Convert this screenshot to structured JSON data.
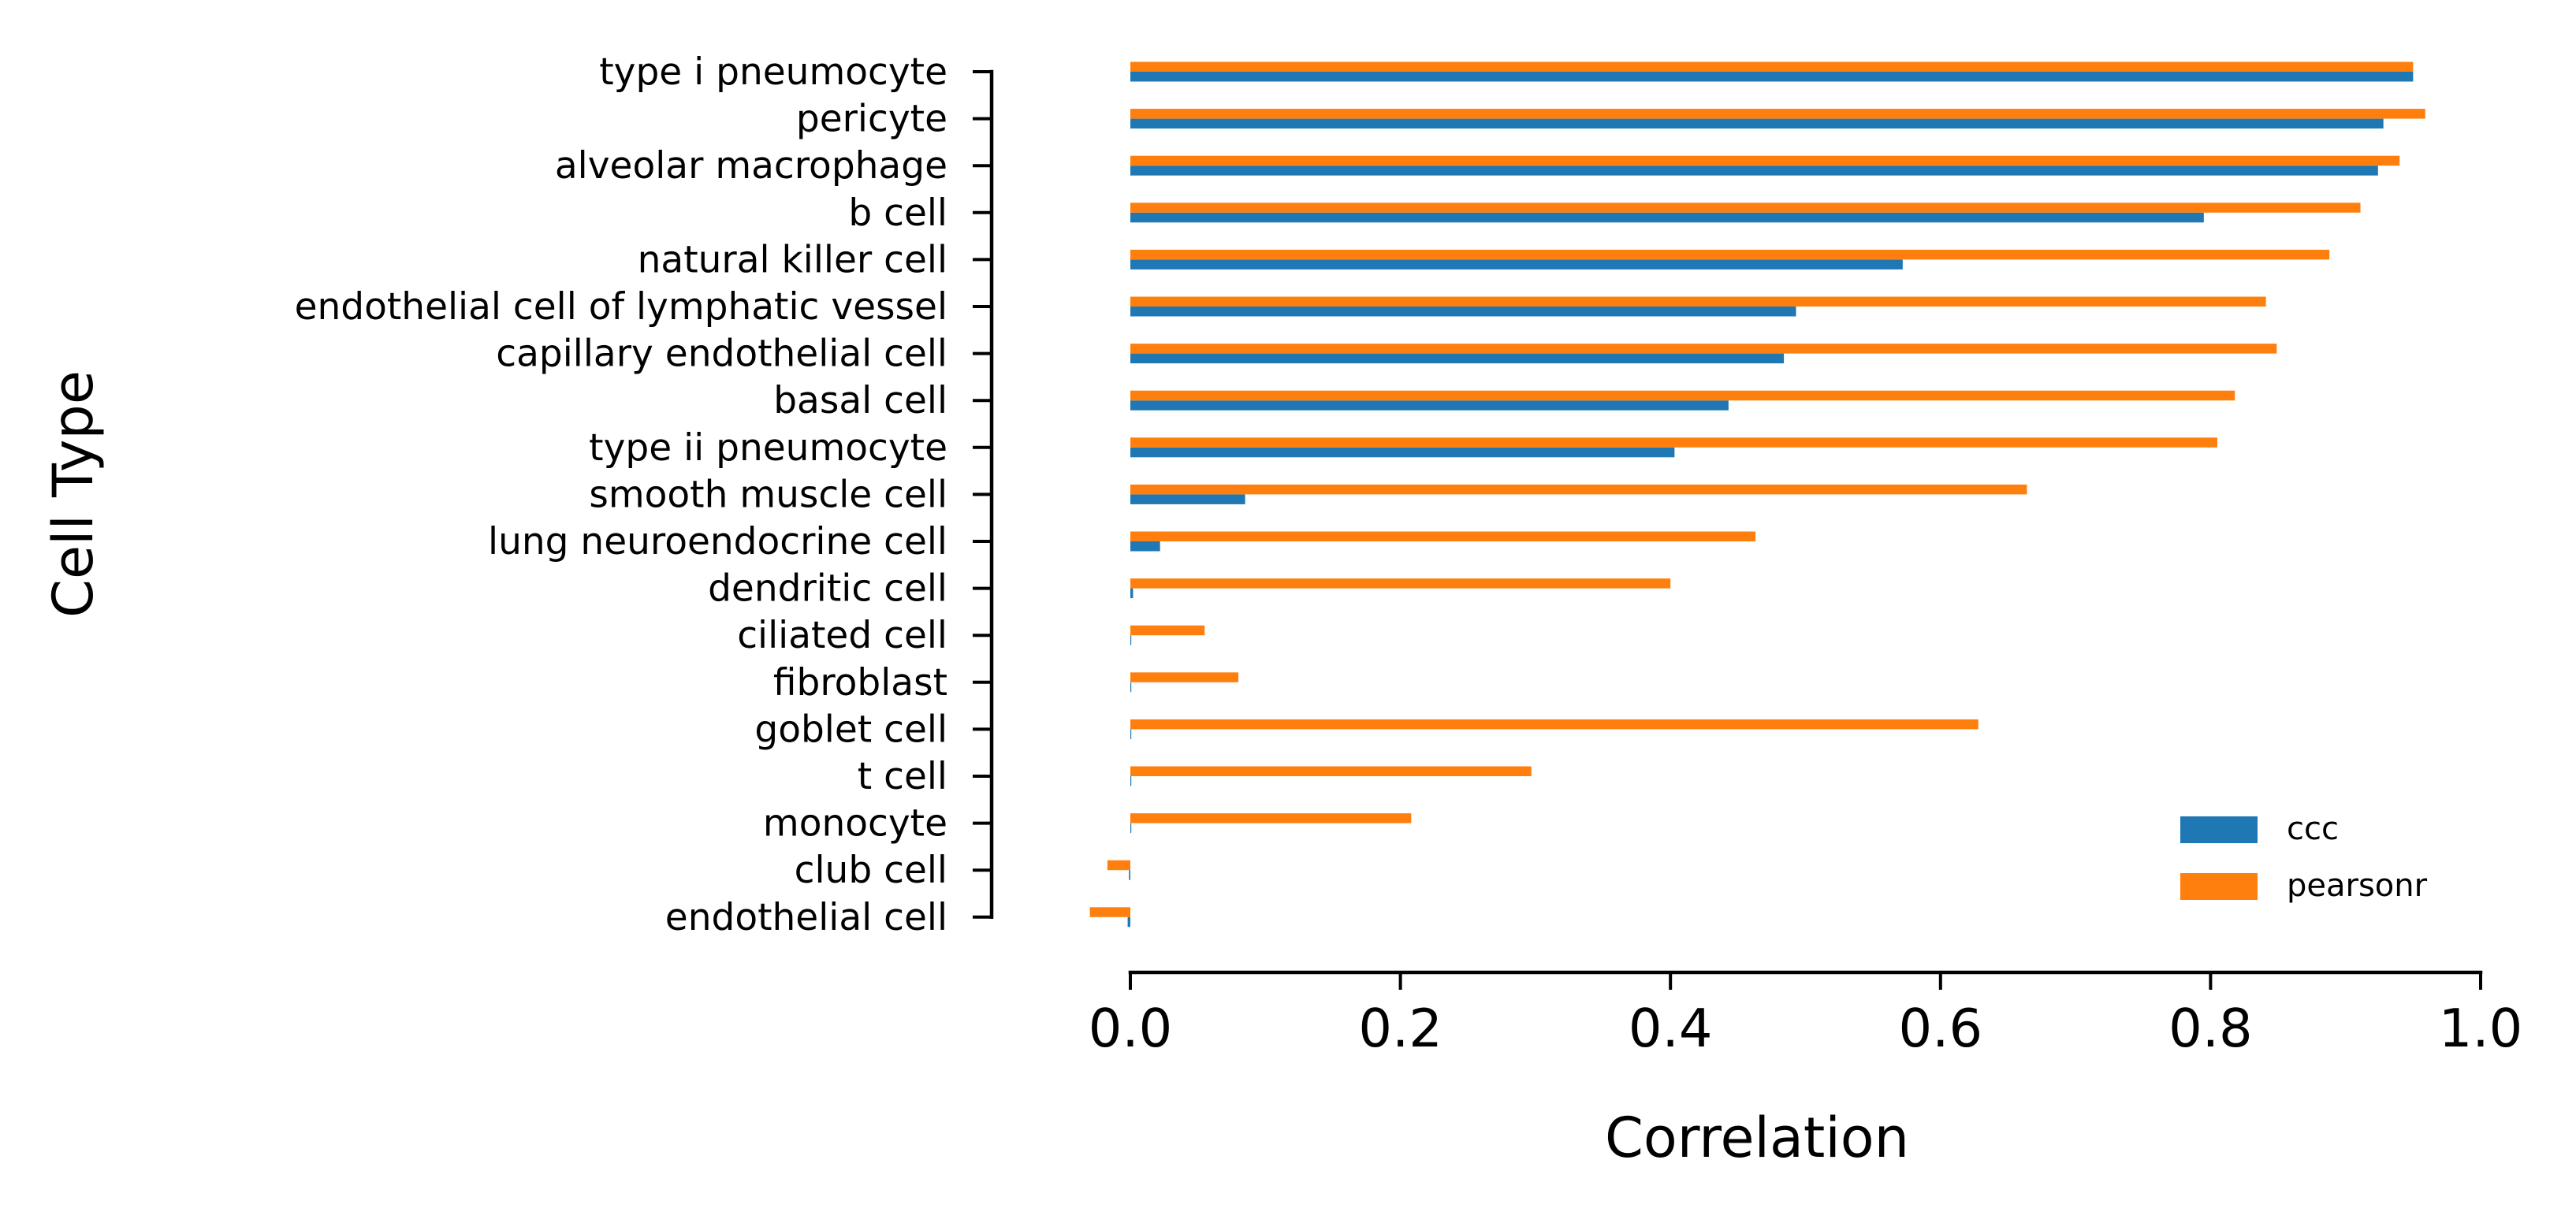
{
  "chart_data": {
    "type": "bar",
    "orientation": "horizontal",
    "xlabel": "Correlation",
    "ylabel": "Cell Type",
    "xlim": [
      -0.03,
      1.0
    ],
    "xticks": [
      0.0,
      0.2,
      0.4,
      0.6,
      0.8,
      1.0
    ],
    "xtick_labels": [
      "0.0",
      "0.2",
      "0.4",
      "0.6",
      "0.8",
      "1.0"
    ],
    "grid": false,
    "legend_position": "lower-right",
    "categories": [
      "type i pneumocyte",
      "pericyte",
      "alveolar macrophage",
      "b cell",
      "natural killer cell",
      "endothelial cell of lymphatic vessel",
      "capillary endothelial cell",
      "basal cell",
      "type ii pneumocyte",
      "smooth muscle cell",
      "lung neuroendocrine cell",
      "dendritic cell",
      "ciliated cell",
      "fibroblast",
      "goblet cell",
      "t cell",
      "monocyte",
      "club cell",
      "endothelial cell"
    ],
    "series": [
      {
        "name": "ccc",
        "color": "#1f77b4",
        "values": [
          0.95,
          0.928,
          0.924,
          0.795,
          0.572,
          0.493,
          0.484,
          0.443,
          0.403,
          0.085,
          0.022,
          0.002,
          0.0,
          0.0,
          0.0,
          0.0,
          0.0,
          -0.001,
          -0.002
        ]
      },
      {
        "name": "pearsonr",
        "color": "#ff7f0e",
        "values": [
          0.95,
          0.959,
          0.94,
          0.911,
          0.888,
          0.841,
          0.849,
          0.818,
          0.805,
          0.664,
          0.463,
          0.4,
          0.055,
          0.08,
          0.628,
          0.297,
          0.208,
          -0.017,
          -0.03
        ]
      }
    ]
  }
}
